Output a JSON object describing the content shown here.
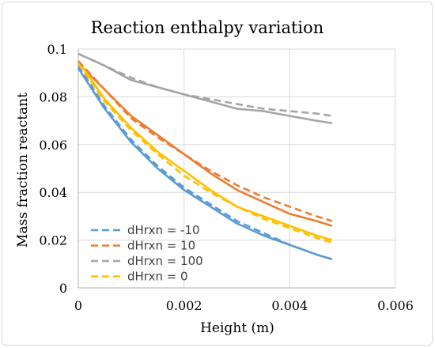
{
  "chart_data": {
    "type": "line",
    "title": "Reaction enthalpy variation",
    "xlabel": "Height (m)",
    "ylabel": "Mass fraction reactant",
    "xlim": [
      0,
      0.006
    ],
    "ylim": [
      0,
      0.1
    ],
    "x_ticks": [
      "0",
      "0.002",
      "0.004",
      "0.006"
    ],
    "y_ticks": [
      "0",
      "0.02",
      "0.04",
      "0.06",
      "0.08",
      "0.1"
    ],
    "grid": true,
    "legend_position": "bottom-left",
    "series": [
      {
        "name": "dHrxn = -10",
        "color": "#5B9BD5",
        "dashed": true,
        "x": [
          0,
          0.0005,
          0.001,
          0.0015,
          0.002,
          0.0025,
          0.003,
          0.0035,
          0.004,
          0.0045,
          0.0048
        ],
        "y": [
          0.093,
          0.076,
          0.062,
          0.051,
          0.042,
          0.035,
          0.028,
          0.023,
          0.018,
          0.014,
          0.012
        ]
      },
      {
        "name": "dHrxn = 10",
        "color": "#ED7D31",
        "dashed": true,
        "x": [
          0,
          0.0005,
          0.001,
          0.0015,
          0.002,
          0.0025,
          0.003,
          0.0035,
          0.004,
          0.0045,
          0.0048
        ],
        "y": [
          0.095,
          0.083,
          0.071,
          0.063,
          0.056,
          0.049,
          0.043,
          0.038,
          0.034,
          0.03,
          0.028
        ]
      },
      {
        "name": "dHrxn = 100",
        "color": "#A5A5A5",
        "dashed": true,
        "x": [
          0,
          0.0005,
          0.001,
          0.0015,
          0.002,
          0.0025,
          0.003,
          0.0035,
          0.004,
          0.0045,
          0.0048
        ],
        "y": [
          0.098,
          0.093,
          0.088,
          0.084,
          0.081,
          0.079,
          0.077,
          0.075,
          0.074,
          0.073,
          0.072
        ]
      },
      {
        "name": "dHrxn = 0",
        "color": "#FFC000",
        "dashed": true,
        "x": [
          0,
          0.0005,
          0.001,
          0.0015,
          0.002,
          0.0025,
          0.003,
          0.0035,
          0.004,
          0.0045,
          0.0048
        ],
        "y": [
          0.094,
          0.078,
          0.066,
          0.056,
          0.047,
          0.04,
          0.034,
          0.029,
          0.025,
          0.021,
          0.019
        ]
      },
      {
        "name": "",
        "color": "#5B9BD5",
        "dashed": false,
        "x": [
          0,
          0.0005,
          0.001,
          0.0015,
          0.002,
          0.0025,
          0.003,
          0.0035,
          0.004,
          0.0045,
          0.0048
        ],
        "y": [
          0.092,
          0.075,
          0.061,
          0.05,
          0.041,
          0.034,
          0.027,
          0.022,
          0.018,
          0.014,
          0.012
        ]
      },
      {
        "name": "",
        "color": "#ED7D31",
        "dashed": false,
        "x": [
          0,
          0.0005,
          0.001,
          0.0015,
          0.002,
          0.0025,
          0.003,
          0.0035,
          0.004,
          0.0045,
          0.0048
        ],
        "y": [
          0.094,
          0.083,
          0.072,
          0.064,
          0.056,
          0.048,
          0.041,
          0.036,
          0.031,
          0.028,
          0.026
        ]
      },
      {
        "name": "",
        "color": "#A5A5A5",
        "dashed": false,
        "x": [
          0,
          0.0005,
          0.001,
          0.0015,
          0.002,
          0.0025,
          0.003,
          0.0035,
          0.004,
          0.0045,
          0.0048
        ],
        "y": [
          0.098,
          0.093,
          0.087,
          0.084,
          0.081,
          0.078,
          0.075,
          0.074,
          0.072,
          0.07,
          0.069
        ]
      },
      {
        "name": "",
        "color": "#FFC000",
        "dashed": false,
        "x": [
          0,
          0.0005,
          0.001,
          0.0015,
          0.002,
          0.0025,
          0.003,
          0.0035,
          0.004,
          0.0045,
          0.0048
        ],
        "y": [
          0.095,
          0.079,
          0.067,
          0.057,
          0.049,
          0.041,
          0.034,
          0.03,
          0.026,
          0.022,
          0.02
        ]
      }
    ]
  }
}
